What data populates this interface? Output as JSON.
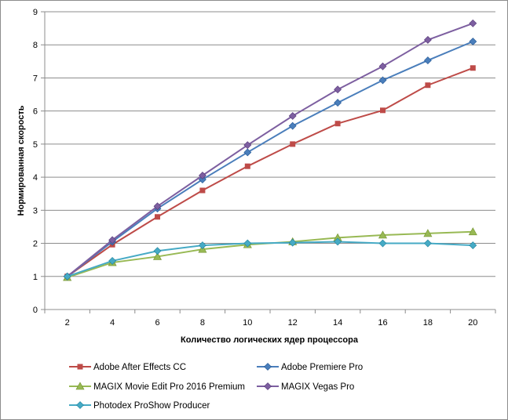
{
  "chart_data": {
    "type": "line",
    "xlabel": "Количество  логических  ядер  процессора",
    "ylabel": "Нормированная  скорость",
    "x": [
      2,
      4,
      6,
      8,
      10,
      12,
      14,
      16,
      18,
      20
    ],
    "xlim": [
      1,
      21
    ],
    "ylim": [
      0,
      9
    ],
    "yticks": [
      0,
      1,
      2,
      3,
      4,
      5,
      6,
      7,
      8,
      9
    ],
    "grid": "horizontal",
    "legend": "bottom",
    "series": [
      {
        "name": "Adobe After Effects CC",
        "color": "#be4b48",
        "marker": "square",
        "values": [
          1.0,
          1.96,
          2.8,
          3.6,
          4.33,
          5.0,
          5.62,
          6.02,
          6.78,
          7.3
        ]
      },
      {
        "name": "Adobe Premiere Pro",
        "color": "#4a7ebb",
        "marker": "diamond",
        "values": [
          1.0,
          2.05,
          3.05,
          3.93,
          4.75,
          5.55,
          6.25,
          6.93,
          7.53,
          8.1
        ]
      },
      {
        "name": "MAGIX Movie Edit Pro 2016 Premium",
        "color": "#98b954",
        "marker": "triangle",
        "values": [
          0.97,
          1.42,
          1.6,
          1.82,
          1.96,
          2.05,
          2.17,
          2.25,
          2.3,
          2.35
        ]
      },
      {
        "name": "MAGIX Vegas Pro",
        "color": "#7d5fa0",
        "marker": "diamond",
        "values": [
          1.0,
          2.1,
          3.12,
          4.05,
          4.97,
          5.85,
          6.65,
          7.35,
          8.15,
          8.65
        ]
      },
      {
        "name": "Photodex ProShow Producer",
        "color": "#46aac5",
        "marker": "diamond",
        "values": [
          1.0,
          1.47,
          1.77,
          1.94,
          2.0,
          2.02,
          2.05,
          2.0,
          2.0,
          1.94
        ]
      }
    ]
  }
}
